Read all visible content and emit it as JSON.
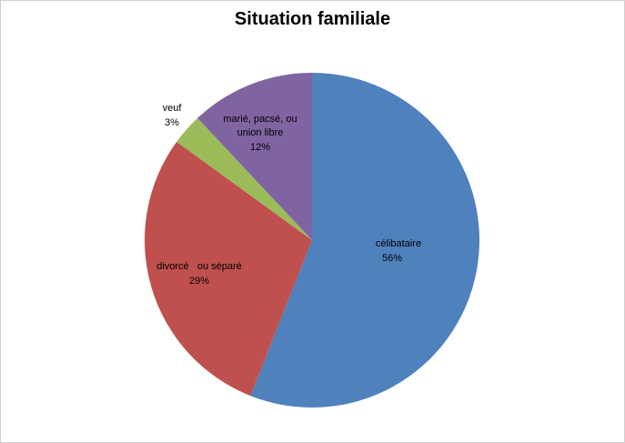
{
  "chart_data": {
    "type": "pie",
    "title": "Situation familiale",
    "start_angle_deg": 0,
    "direction": "clockwise",
    "slices": [
      {
        "label_lines": [
          "célibataire"
        ],
        "percent_label": "56%",
        "value": 56,
        "color": "#4F81BD"
      },
      {
        "label_lines": [
          "divorcé   ou séparé"
        ],
        "percent_label": "29%",
        "value": 29,
        "color": "#C0504D"
      },
      {
        "label_lines": [
          "veuf"
        ],
        "percent_label": "3%",
        "value": 3,
        "color": "#9BBB59"
      },
      {
        "label_lines": [
          "marié, pacsé, ou",
          "union libre"
        ],
        "percent_label": "12%",
        "value": 12,
        "color": "#8064A2"
      }
    ]
  }
}
